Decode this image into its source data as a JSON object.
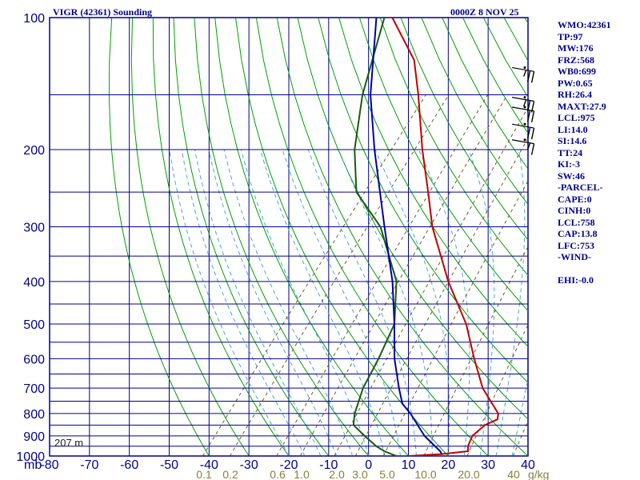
{
  "header": {
    "title": "VIGR (42361) Sounding",
    "time": "0000Z  8 NOV 25"
  },
  "indices": [
    "WMO:42361",
    "TP:97",
    "MW:176",
    "FRZ:568",
    "WB0:699",
    "PW:0.65",
    "RH:26.4",
    "MAXT:27.9",
    "LCL:975",
    "LI:14.0",
    "SI:14.6",
    "TT:24",
    "KI:-3",
    "SW:46",
    "-PARCEL-",
    "CAPE:0",
    "CINH:0",
    "LCL:758",
    "CAP:13.8",
    "LFC:753",
    "-WIND-",
    "",
    "EHI:-0.0"
  ],
  "station_height": "207 m",
  "colors": {
    "grid": "#00008b",
    "dry_adiabat": "#00a000",
    "moist_adiabat": "#4aa3df",
    "mixing_ratio": "#6b5a2a",
    "temperature": "#c00000",
    "dewpoint": "#1a5a10",
    "parcel": "#0000a0"
  },
  "chart_data": {
    "type": "line",
    "title": "VIGR (42361) Sounding",
    "x_unit": "mb",
    "pressure_levels": [
      1000,
      900,
      800,
      700,
      600,
      500,
      400,
      300,
      200,
      100
    ],
    "pressure_label_y_levels": [
      1000,
      900,
      800,
      700,
      600,
      500,
      400,
      300,
      200,
      100
    ],
    "pressure_grid_levels": [
      1000,
      950,
      900,
      850,
      800,
      750,
      700,
      650,
      600,
      550,
      500,
      450,
      400,
      350,
      300,
      250,
      200,
      150,
      100
    ],
    "ylim": [
      1000,
      100
    ],
    "xlim": [
      -80,
      40
    ],
    "temp_ticks": [
      -80,
      -70,
      -60,
      -50,
      -40,
      -30,
      -20,
      -10,
      0,
      10,
      20,
      30,
      40
    ],
    "mixing_ratio_labels": [
      "0.1",
      "0.2",
      "0.6",
      "1.0",
      "2.0",
      "3.0",
      "5.0",
      "10.0",
      "20.0",
      "40",
      "g/kg"
    ],
    "mixing_ratio_values": [
      0.1,
      0.2,
      0.6,
      1.0,
      2.0,
      3.0,
      5.0,
      10.0,
      20.0,
      40
    ],
    "series": [
      {
        "name": "temperature",
        "points": [
          [
            1000,
            10
          ],
          [
            990,
            18
          ],
          [
            975,
            24
          ],
          [
            950,
            23
          ],
          [
            900,
            22
          ],
          [
            850,
            23
          ],
          [
            825,
            25
          ],
          [
            800,
            24
          ],
          [
            700,
            15
          ],
          [
            600,
            7
          ],
          [
            500,
            -2
          ],
          [
            400,
            -15
          ],
          [
            300,
            -30
          ],
          [
            250,
            -38
          ],
          [
            200,
            -48
          ],
          [
            150,
            -60
          ],
          [
            125,
            -68
          ],
          [
            100,
            -82
          ]
        ]
      },
      {
        "name": "dewpoint",
        "points": [
          [
            1000,
            7
          ],
          [
            975,
            3
          ],
          [
            950,
            0
          ],
          [
            900,
            -5
          ],
          [
            850,
            -10
          ],
          [
            800,
            -12
          ],
          [
            700,
            -15
          ],
          [
            600,
            -17
          ],
          [
            500,
            -20
          ],
          [
            400,
            -28
          ],
          [
            300,
            -43
          ],
          [
            250,
            -56
          ],
          [
            200,
            -65
          ],
          [
            150,
            -74
          ],
          [
            100,
            -84
          ]
        ]
      },
      {
        "name": "parcel",
        "points": [
          [
            990,
            18
          ],
          [
            975,
            17
          ],
          [
            900,
            10
          ],
          [
            800,
            2
          ],
          [
            760,
            -2
          ],
          [
            700,
            -6
          ],
          [
            600,
            -13
          ],
          [
            500,
            -20
          ],
          [
            400,
            -29
          ],
          [
            300,
            -42
          ],
          [
            200,
            -60
          ],
          [
            150,
            -72
          ],
          [
            100,
            -86
          ]
        ]
      }
    ],
    "wind_barbs": [
      {
        "pressure": 130,
        "direction": 280,
        "speed_kt": 25
      },
      {
        "pressure": 152,
        "direction": 280,
        "speed_kt": 25
      },
      {
        "pressure": 160,
        "direction": 280,
        "speed_kt": 20
      },
      {
        "pressure": 175,
        "direction": 280,
        "speed_kt": 20
      },
      {
        "pressure": 190,
        "direction": 280,
        "speed_kt": 15
      }
    ]
  }
}
